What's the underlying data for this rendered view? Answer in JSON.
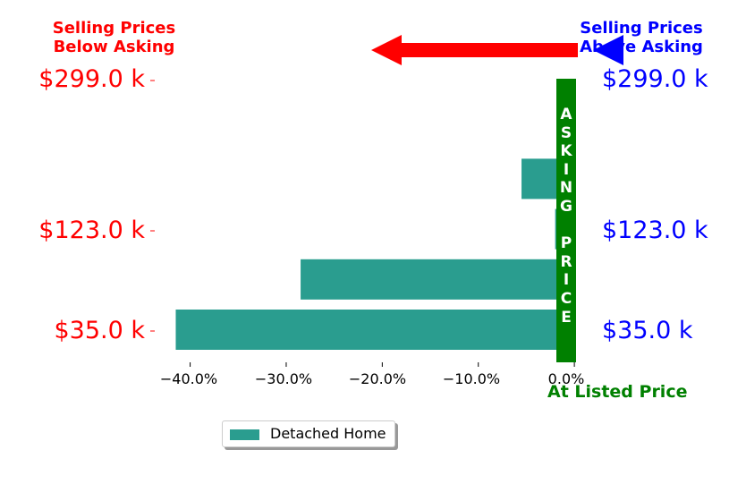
{
  "header": {
    "left_text": "Selling Prices\nBelow Asking",
    "right_text": "Selling Prices\nAbove Asking"
  },
  "colors": {
    "bar": "#2a9d8f",
    "asking_band": "#008000",
    "below": "#ff0000",
    "above": "#0000ff"
  },
  "asking_label": [
    "A",
    "S",
    "K",
    "I",
    "N",
    "G",
    " ",
    "P",
    "R",
    "I",
    "C",
    "E"
  ],
  "at_listed_label": "At Listed Price",
  "legend": {
    "label": "Detached Home"
  },
  "price_labels": [
    {
      "value": 299.0,
      "text": "$299.0 k"
    },
    {
      "value": 123.0,
      "text": "$123.0 k"
    },
    {
      "value": 35.0,
      "text": "$35.0 k"
    }
  ],
  "chart_data": {
    "type": "bar",
    "orientation": "horizontal",
    "x_ticks": [
      "−40.0%",
      "−30.0%",
      "−20.0%",
      "−10.0%",
      "0.0%"
    ],
    "x_tick_values": [
      -40,
      -30,
      -20,
      -10,
      0
    ],
    "xlim": [
      -43.5,
      1.2
    ],
    "series": [
      {
        "name": "Detached Home",
        "bars": [
          {
            "position": 0,
            "value": -41.5
          },
          {
            "position": 1,
            "value": -28.5
          },
          {
            "position": 2,
            "value": -2.0
          },
          {
            "position": 3,
            "value": -5.5
          },
          {
            "position": 4,
            "value": -0.5
          },
          {
            "position": 5,
            "value": 0.0
          }
        ]
      }
    ],
    "legend_position": "bottom-center"
  }
}
